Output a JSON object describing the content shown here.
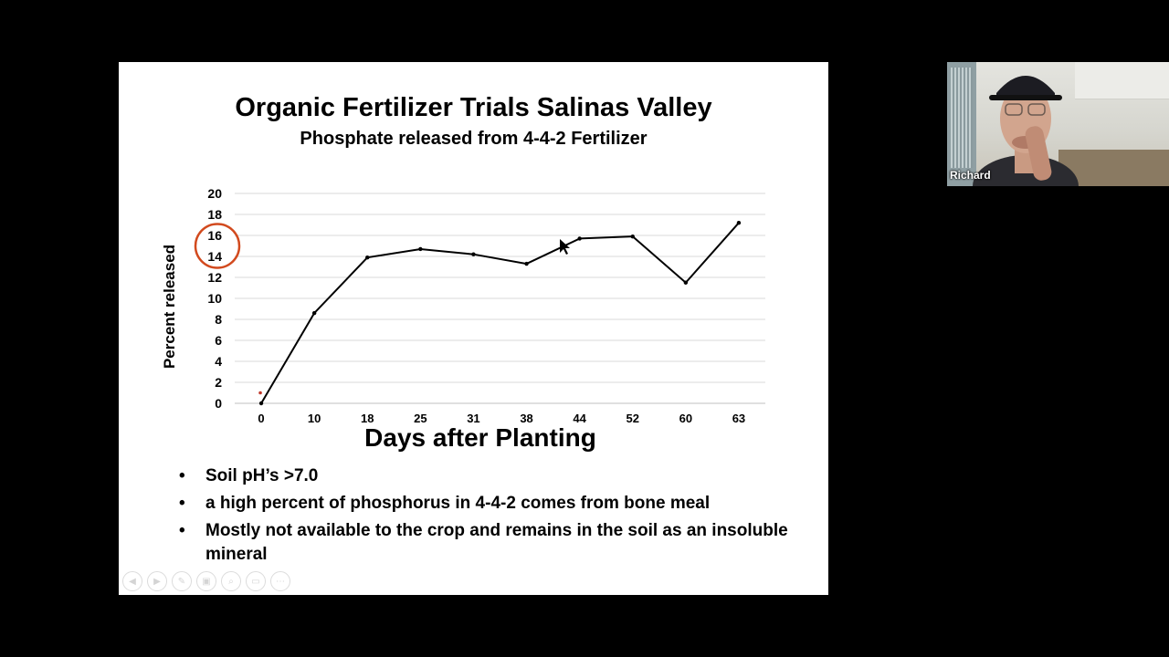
{
  "slide": {
    "title": "Organic Fertilizer Trials Salinas Valley",
    "subtitle": "Phosphate released from 4-4-2 Fertilizer",
    "bullets": [
      "Soil pH’s >7.0",
      "a high percent of phosphorus in 4-4-2 comes from bone meal",
      "Mostly not available to the crop and remains in the soil as an insoluble mineral"
    ],
    "toolbar": [
      {
        "name": "previous-slide-button",
        "icon": "arrow-left-icon"
      },
      {
        "name": "next-slide-button",
        "icon": "arrow-right-icon"
      },
      {
        "name": "pen-tool-button",
        "icon": "pen-icon"
      },
      {
        "name": "slides-view-button",
        "icon": "slides-icon"
      },
      {
        "name": "zoom-button",
        "icon": "magnifier-icon"
      },
      {
        "name": "subtitles-button",
        "icon": "subtitles-icon"
      },
      {
        "name": "more-options-button",
        "icon": "more-icon"
      }
    ]
  },
  "chart_data": {
    "type": "line",
    "categories": [
      "0",
      "10",
      "18",
      "25",
      "31",
      "38",
      "44",
      "52",
      "60",
      "63"
    ],
    "series": [
      {
        "values": [
          0,
          8.6,
          13.9,
          14.7,
          14.2,
          13.3,
          15.7,
          15.9,
          11.5,
          17.2
        ],
        "color": "#000000"
      }
    ],
    "xlabel": "Days after Planting",
    "ylabel": "Percent released",
    "ylim": [
      0,
      20
    ],
    "yticks": [
      0,
      2,
      4,
      6,
      8,
      10,
      12,
      14,
      16,
      18,
      20
    ],
    "grid": true,
    "annotations": [
      {
        "type": "circle",
        "around_ticks": [
          14,
          16
        ],
        "color": "#d24a1e"
      }
    ]
  },
  "video": {
    "participant_name": "Richard"
  }
}
